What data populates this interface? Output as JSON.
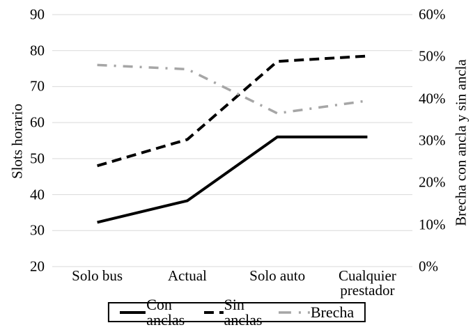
{
  "chart_data": {
    "type": "line",
    "categories": [
      "Solo bus",
      "Actual",
      "Solo auto",
      "Cualquier prestador"
    ],
    "left_axis": {
      "label": "Slots horario",
      "min": 20,
      "max": 90,
      "tick_values": [
        90,
        80,
        70,
        60,
        50,
        40,
        30,
        20
      ],
      "tick_labels": [
        "90",
        "80",
        "70",
        "60",
        "50",
        "40",
        "30",
        "20"
      ]
    },
    "right_axis": {
      "label": "Brecha con ancla y sin ancla",
      "min": 0,
      "max": 60,
      "tick_values": [
        60,
        50,
        40,
        30,
        20,
        10,
        0
      ],
      "tick_labels": [
        "60%",
        "50%",
        "40%",
        "30%",
        "20%",
        "10%",
        "0%"
      ]
    },
    "series": [
      {
        "name": "Con anclas",
        "axis": "left",
        "values": [
          32.3,
          38.3,
          56,
          56
        ],
        "color": "#000000",
        "line_style": "solid",
        "line_width": 4
      },
      {
        "name": "Sin anclas",
        "axis": "left",
        "values": [
          48,
          55.3,
          77,
          78.5
        ],
        "color": "#000000",
        "line_style": "dashed",
        "line_width": 4
      },
      {
        "name": "Brecha",
        "axis": "right",
        "values": [
          48,
          47,
          36.5,
          39.5
        ],
        "color": "#a6a6a6",
        "line_style": "dash-dot",
        "line_width": 3.5
      }
    ],
    "grid": "horizontal",
    "legend_position": "bottom",
    "colors": {
      "grid": "#d9d9d9",
      "background": "#ffffff",
      "text": "#000000"
    }
  }
}
